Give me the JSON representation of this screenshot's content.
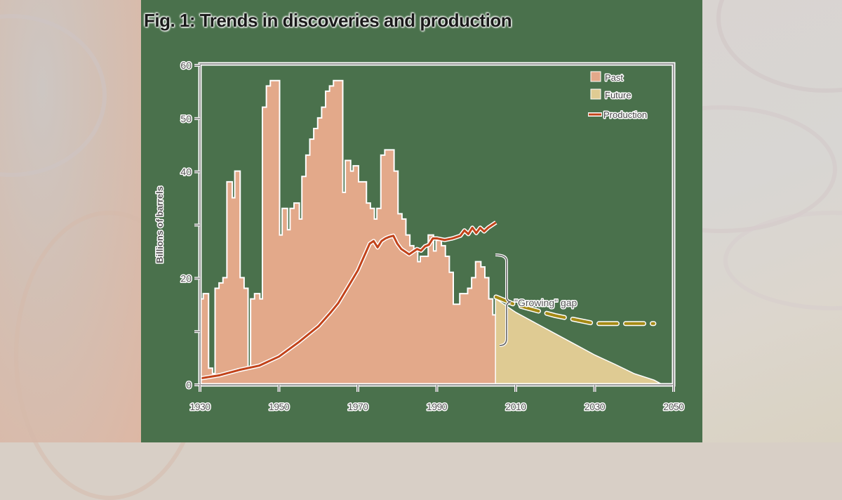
{
  "title": "Fig. 1: Trends in discoveries and production",
  "legend": {
    "past": "Past",
    "future": "Future",
    "production": "Production"
  },
  "annotation": "\"Growing\" gap",
  "colors": {
    "background_panel": "#4a714c",
    "past_bars": "#e3a98a",
    "future_bars": "#dfcb93",
    "production_line": "#c2431a",
    "future_projection_line": "#a58a14",
    "axis": "#9a9a9a"
  },
  "chart_data": {
    "type": "bar",
    "title": "Fig. 1: Trends in discoveries and production",
    "xlabel": "",
    "ylabel": "Billions of barrels",
    "xlim": [
      1930,
      2050
    ],
    "ylim": [
      0,
      60
    ],
    "xticks": [
      1930,
      1950,
      1970,
      1990,
      2010,
      2030,
      2050
    ],
    "yticks": [
      0,
      10,
      20,
      30,
      40,
      50,
      60
    ],
    "ytick_labels": [
      "0",
      "",
      "20",
      "",
      "40",
      "50",
      "60"
    ],
    "legend_position": "top-right",
    "grid": false,
    "series": [
      {
        "name": "Past",
        "type": "bar",
        "x": [
          1930,
          1931,
          1932,
          1933,
          1934,
          1935,
          1936,
          1937,
          1938,
          1939,
          1940,
          1941,
          1942,
          1943,
          1944,
          1945,
          1946,
          1947,
          1948,
          1949,
          1950,
          1951,
          1952,
          1953,
          1954,
          1955,
          1956,
          1957,
          1958,
          1959,
          1960,
          1961,
          1962,
          1963,
          1964,
          1965,
          1966,
          1967,
          1968,
          1969,
          1970,
          1971,
          1972,
          1973,
          1974,
          1975,
          1976,
          1977,
          1978,
          1979,
          1980,
          1981,
          1982,
          1983,
          1984,
          1985,
          1986,
          1987,
          1988,
          1989,
          1990,
          1991,
          1992,
          1993,
          1994,
          1995,
          1996,
          1997,
          1998,
          1999,
          2000,
          2001,
          2002,
          2003,
          2004
        ],
        "values": [
          16,
          17,
          3,
          2,
          18,
          19,
          20,
          38,
          35,
          40,
          20,
          18,
          3,
          16,
          17,
          16,
          52,
          56,
          57,
          57,
          28,
          33,
          29,
          33,
          34,
          31,
          39,
          43,
          46,
          48,
          50,
          52,
          55,
          56,
          57,
          57,
          36,
          42,
          40,
          41,
          38,
          38,
          34,
          33,
          31,
          33,
          43,
          44,
          44,
          40,
          32,
          31,
          28,
          26,
          25,
          23,
          24,
          24,
          28,
          25,
          27,
          26,
          24,
          21,
          15,
          15,
          17,
          17,
          18,
          20,
          23,
          22,
          20,
          16,
          13
        ]
      },
      {
        "name": "Future",
        "type": "area",
        "x": [
          2005,
          2010,
          2015,
          2020,
          2025,
          2030,
          2035,
          2040,
          2045,
          2047
        ],
        "values": [
          16,
          13.5,
          11.5,
          9.5,
          7.5,
          5.5,
          3.8,
          2,
          0.8,
          0
        ]
      },
      {
        "name": "Production",
        "type": "line",
        "x": [
          1930,
          1935,
          1940,
          1945,
          1950,
          1955,
          1960,
          1963,
          1965,
          1968,
          1970,
          1973,
          1974,
          1975,
          1976,
          1977,
          1978,
          1979,
          1980,
          1981,
          1982,
          1983,
          1984,
          1985,
          1986,
          1987,
          1988,
          1989,
          1990,
          1992,
          1994,
          1996,
          1997,
          1998,
          1999,
          2000,
          2001,
          2002,
          2003,
          2004,
          2005
        ],
        "values": [
          1.2,
          1.8,
          2.8,
          3.6,
          5.3,
          8.0,
          11.0,
          13.5,
          15.3,
          19.0,
          21.5,
          26.5,
          27.0,
          25.8,
          27.0,
          27.5,
          27.8,
          28.0,
          26.5,
          25.5,
          25.0,
          24.5,
          25.0,
          25.5,
          25.2,
          26.0,
          26.3,
          27.5,
          27.5,
          27.2,
          27.5,
          28.0,
          29.0,
          28.3,
          29.5,
          28.5,
          29.5,
          28.8,
          29.5,
          30.0,
          30.5
        ]
      },
      {
        "name": "Future production (projected, dashed)",
        "type": "line",
        "x": [
          2005,
          2010,
          2020,
          2030,
          2040,
          2045
        ],
        "values": [
          16.5,
          15.0,
          13.0,
          11.5,
          11.5,
          11.5
        ]
      }
    ],
    "annotations": [
      {
        "text": "\"Growing\" gap",
        "x": 2006,
        "y_range": [
          16,
          30.5
        ]
      }
    ]
  }
}
